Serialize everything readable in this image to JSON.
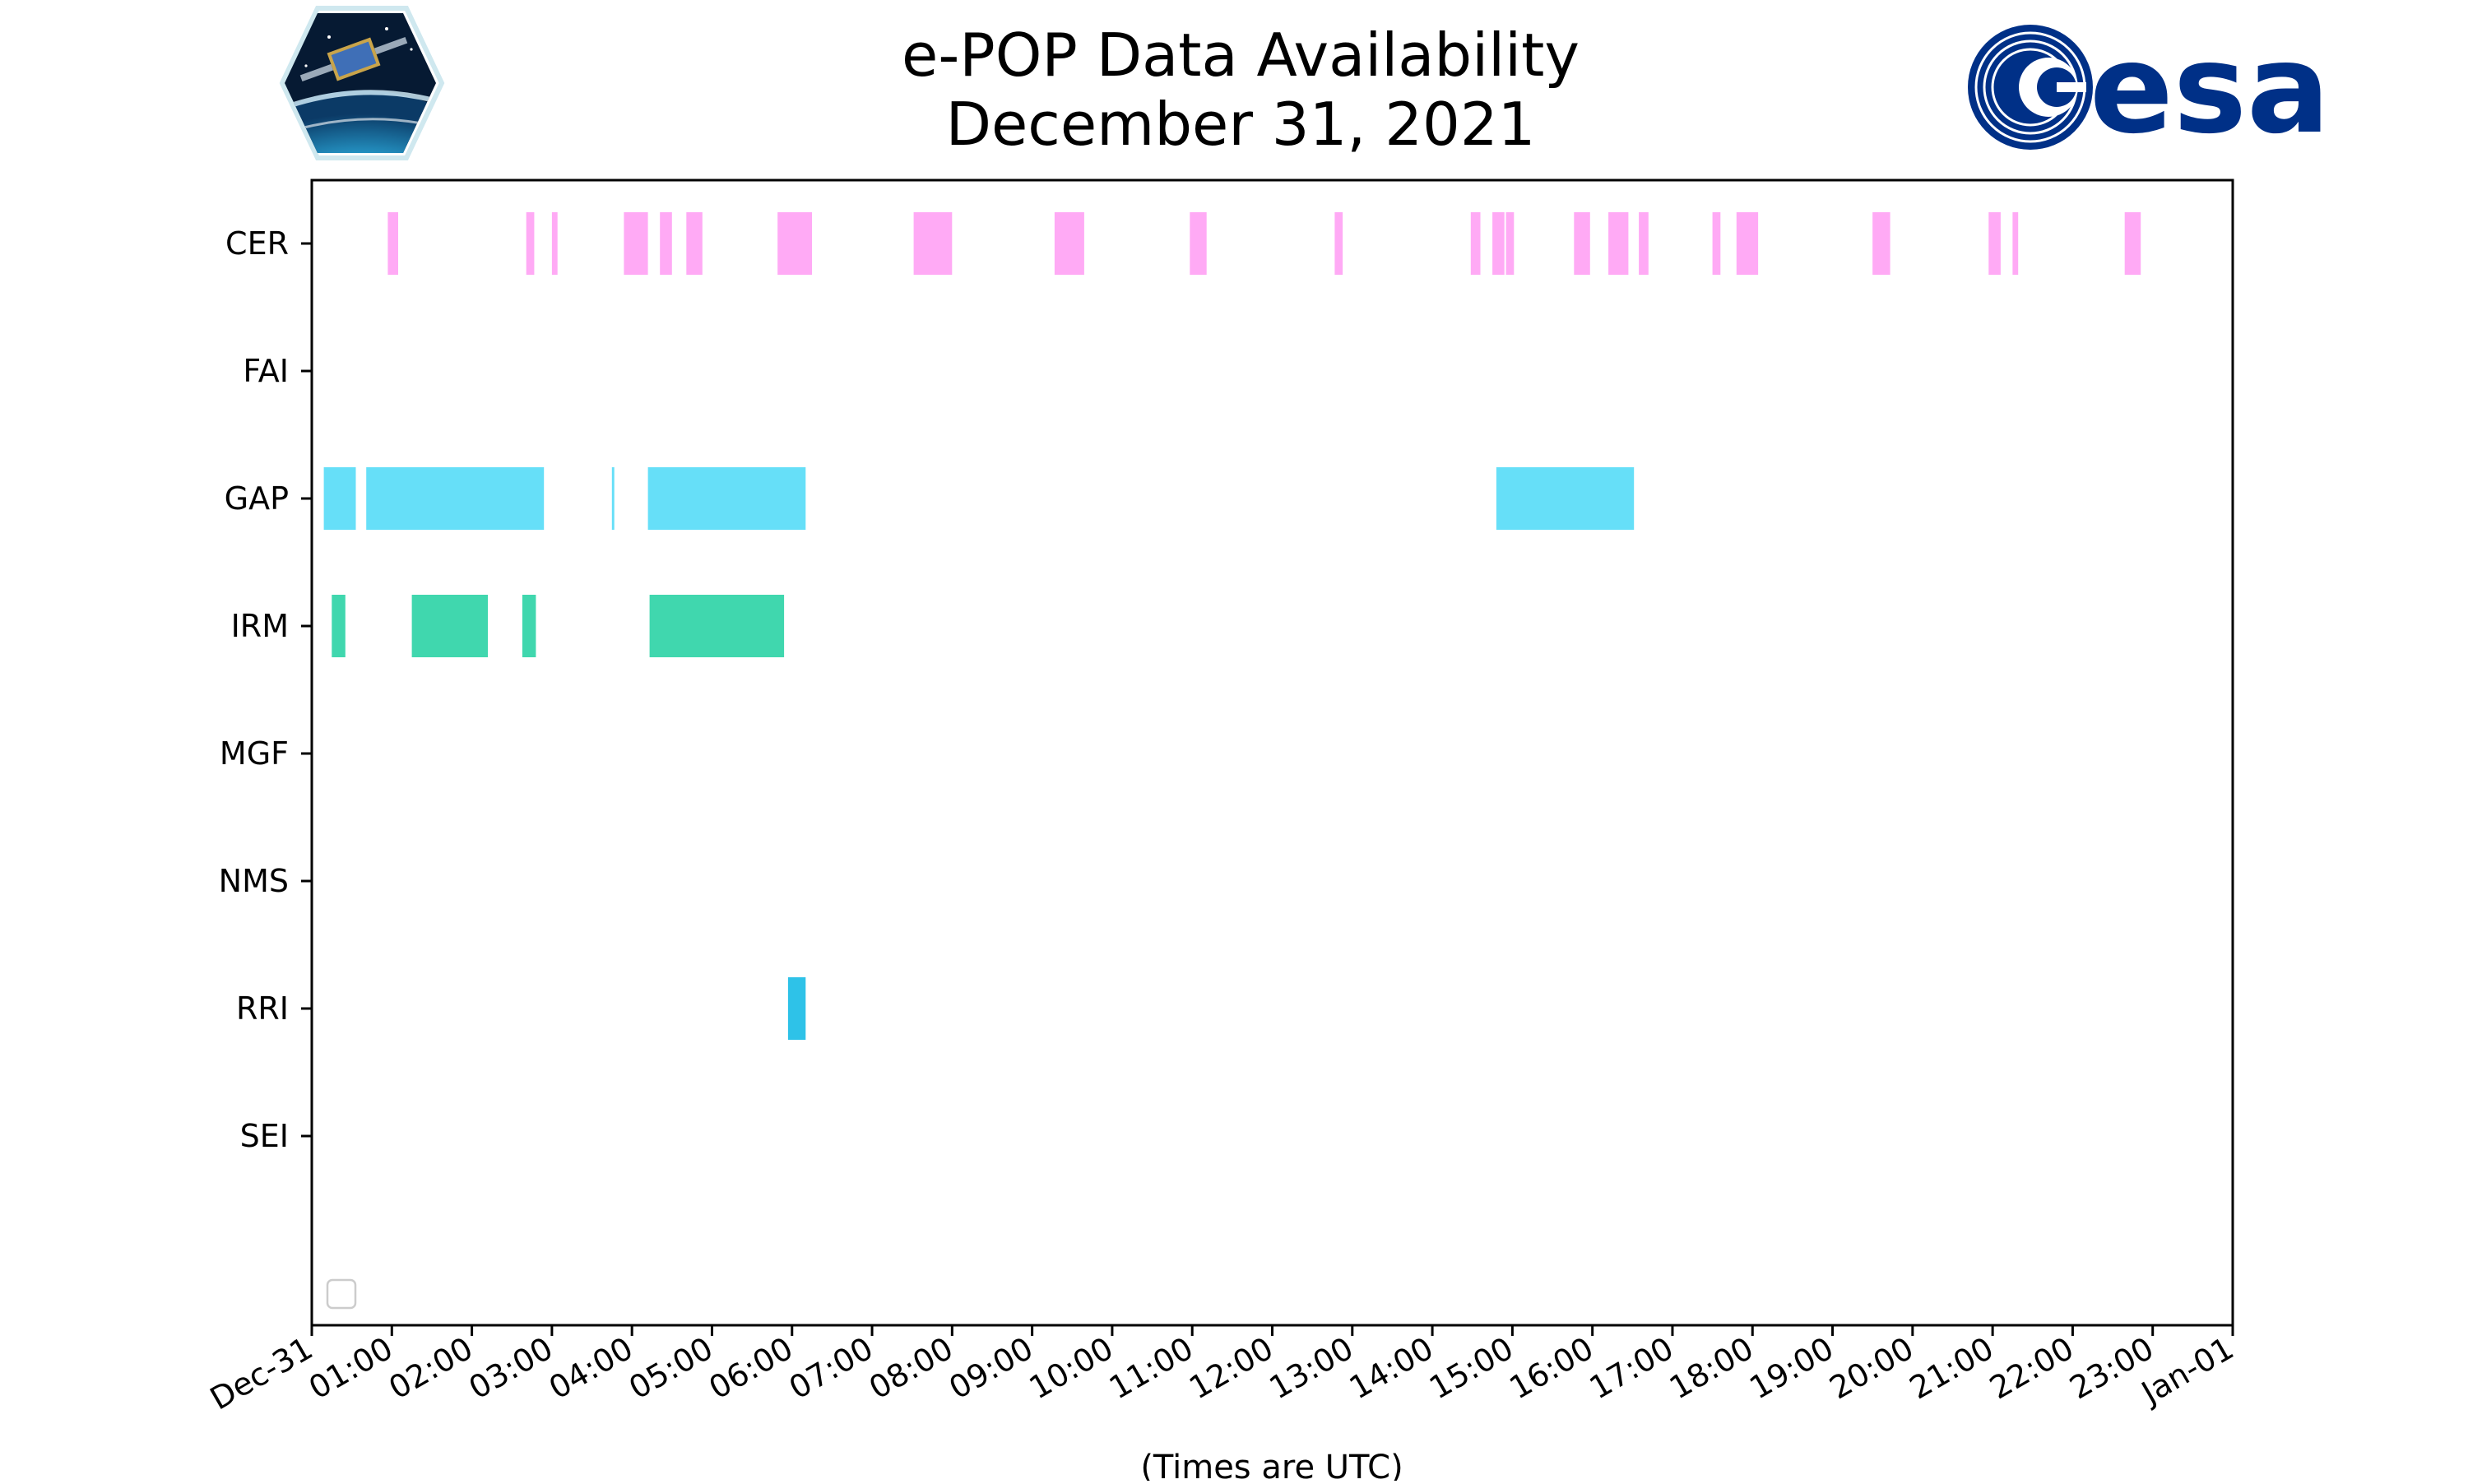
{
  "chart_data": {
    "type": "timeline",
    "title": [
      "e-POP Data Availability",
      "December 31, 2021"
    ],
    "xlabel": "(Times are UTC)",
    "x_start": "2021-12-31 00:00",
    "x_end": "2022-01-01 00:00",
    "xlim": [
      0,
      24
    ],
    "x_ticks": [
      {
        "value": 0,
        "label": "Dec-31"
      },
      {
        "value": 1,
        "label": "01:00"
      },
      {
        "value": 2,
        "label": "02:00"
      },
      {
        "value": 3,
        "label": "03:00"
      },
      {
        "value": 4,
        "label": "04:00"
      },
      {
        "value": 5,
        "label": "05:00"
      },
      {
        "value": 6,
        "label": "06:00"
      },
      {
        "value": 7,
        "label": "07:00"
      },
      {
        "value": 8,
        "label": "08:00"
      },
      {
        "value": 9,
        "label": "09:00"
      },
      {
        "value": 10,
        "label": "10:00"
      },
      {
        "value": 11,
        "label": "11:00"
      },
      {
        "value": 12,
        "label": "12:00"
      },
      {
        "value": 13,
        "label": "13:00"
      },
      {
        "value": 14,
        "label": "14:00"
      },
      {
        "value": 15,
        "label": "15:00"
      },
      {
        "value": 16,
        "label": "16:00"
      },
      {
        "value": 17,
        "label": "17:00"
      },
      {
        "value": 18,
        "label": "18:00"
      },
      {
        "value": 19,
        "label": "19:00"
      },
      {
        "value": 20,
        "label": "20:00"
      },
      {
        "value": 21,
        "label": "21:00"
      },
      {
        "value": 22,
        "label": "22:00"
      },
      {
        "value": 23,
        "label": "23:00"
      },
      {
        "value": 24,
        "label": "Jan-01"
      }
    ],
    "legend": "lower-left (empty)",
    "series": [
      {
        "name": "CER",
        "color": "#FFAAF5",
        "intervals": [
          [
            0.95,
            1.08
          ],
          [
            2.68,
            2.78
          ],
          [
            3.0,
            3.07
          ],
          [
            3.9,
            4.2
          ],
          [
            4.35,
            4.5
          ],
          [
            4.68,
            4.88
          ],
          [
            5.82,
            6.25
          ],
          [
            7.52,
            8.0
          ],
          [
            9.28,
            9.65
          ],
          [
            10.97,
            11.18
          ],
          [
            12.78,
            12.88
          ],
          [
            14.48,
            14.6
          ],
          [
            14.75,
            14.9
          ],
          [
            14.92,
            15.02
          ],
          [
            15.77,
            15.97
          ],
          [
            16.2,
            16.45
          ],
          [
            16.58,
            16.7
          ],
          [
            17.5,
            17.6
          ],
          [
            17.8,
            18.07
          ],
          [
            19.5,
            19.72
          ],
          [
            20.95,
            21.1
          ],
          [
            21.25,
            21.32
          ],
          [
            22.65,
            22.85
          ]
        ]
      },
      {
        "name": "FAI",
        "color": "#FFAAF5",
        "intervals": []
      },
      {
        "name": "GAP",
        "color": "#66DFF8",
        "intervals": [
          [
            0.15,
            0.55
          ],
          [
            0.68,
            2.9
          ],
          [
            3.75,
            3.78
          ],
          [
            4.2,
            6.17
          ],
          [
            14.8,
            16.52
          ]
        ]
      },
      {
        "name": "IRM",
        "color": "#40D7AE",
        "intervals": [
          [
            0.25,
            0.42
          ],
          [
            1.25,
            2.2
          ],
          [
            2.63,
            2.8
          ],
          [
            4.22,
            5.9
          ]
        ]
      },
      {
        "name": "MGF",
        "color": "#40D7AE",
        "intervals": []
      },
      {
        "name": "NMS",
        "color": "#40D7AE",
        "intervals": []
      },
      {
        "name": "RRI",
        "color": "#2EC2E8",
        "intervals": [
          [
            5.95,
            6.17
          ]
        ]
      },
      {
        "name": "SEI",
        "color": "#2EC2E8",
        "intervals": []
      }
    ]
  }
}
